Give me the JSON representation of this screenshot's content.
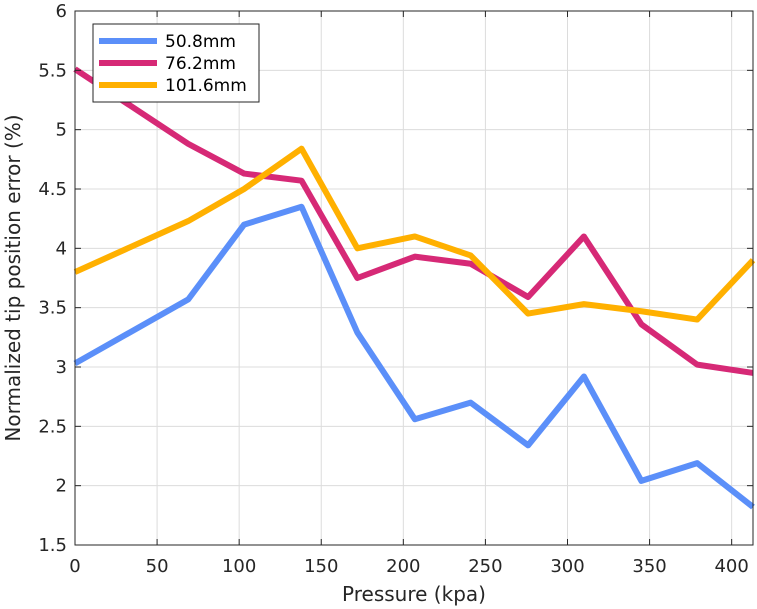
{
  "chart_data": {
    "type": "line",
    "xlabel": "Pressure (kpa)",
    "ylabel": "Normalized tip position error (%)",
    "xlim": [
      0,
      413
    ],
    "ylim": [
      1.5,
      6
    ],
    "xticks": [
      0,
      50,
      100,
      150,
      200,
      250,
      300,
      350,
      400
    ],
    "yticks": [
      1.5,
      2,
      2.5,
      3,
      3.5,
      4,
      4.5,
      5,
      5.5,
      6
    ],
    "grid": true,
    "legend_position": "top-left",
    "x": [
      0,
      69,
      103,
      138,
      172,
      207,
      241,
      276,
      310,
      345,
      379,
      413
    ],
    "series": [
      {
        "name": "50.8mm",
        "color": "#5b8ff9",
        "values": [
          3.03,
          3.57,
          4.2,
          4.35,
          3.29,
          2.56,
          2.7,
          2.34,
          2.92,
          2.04,
          2.19,
          1.82
        ]
      },
      {
        "name": "76.2mm",
        "color": "#d62976",
        "values": [
          5.51,
          4.88,
          4.63,
          4.57,
          3.75,
          3.93,
          3.87,
          3.59,
          4.1,
          3.36,
          3.02,
          2.95
        ]
      },
      {
        "name": "101.6mm",
        "color": "#ffb000",
        "values": [
          3.8,
          4.23,
          4.5,
          4.84,
          4.0,
          4.1,
          3.94,
          3.45,
          3.53,
          3.47,
          3.4,
          3.9
        ]
      }
    ]
  }
}
